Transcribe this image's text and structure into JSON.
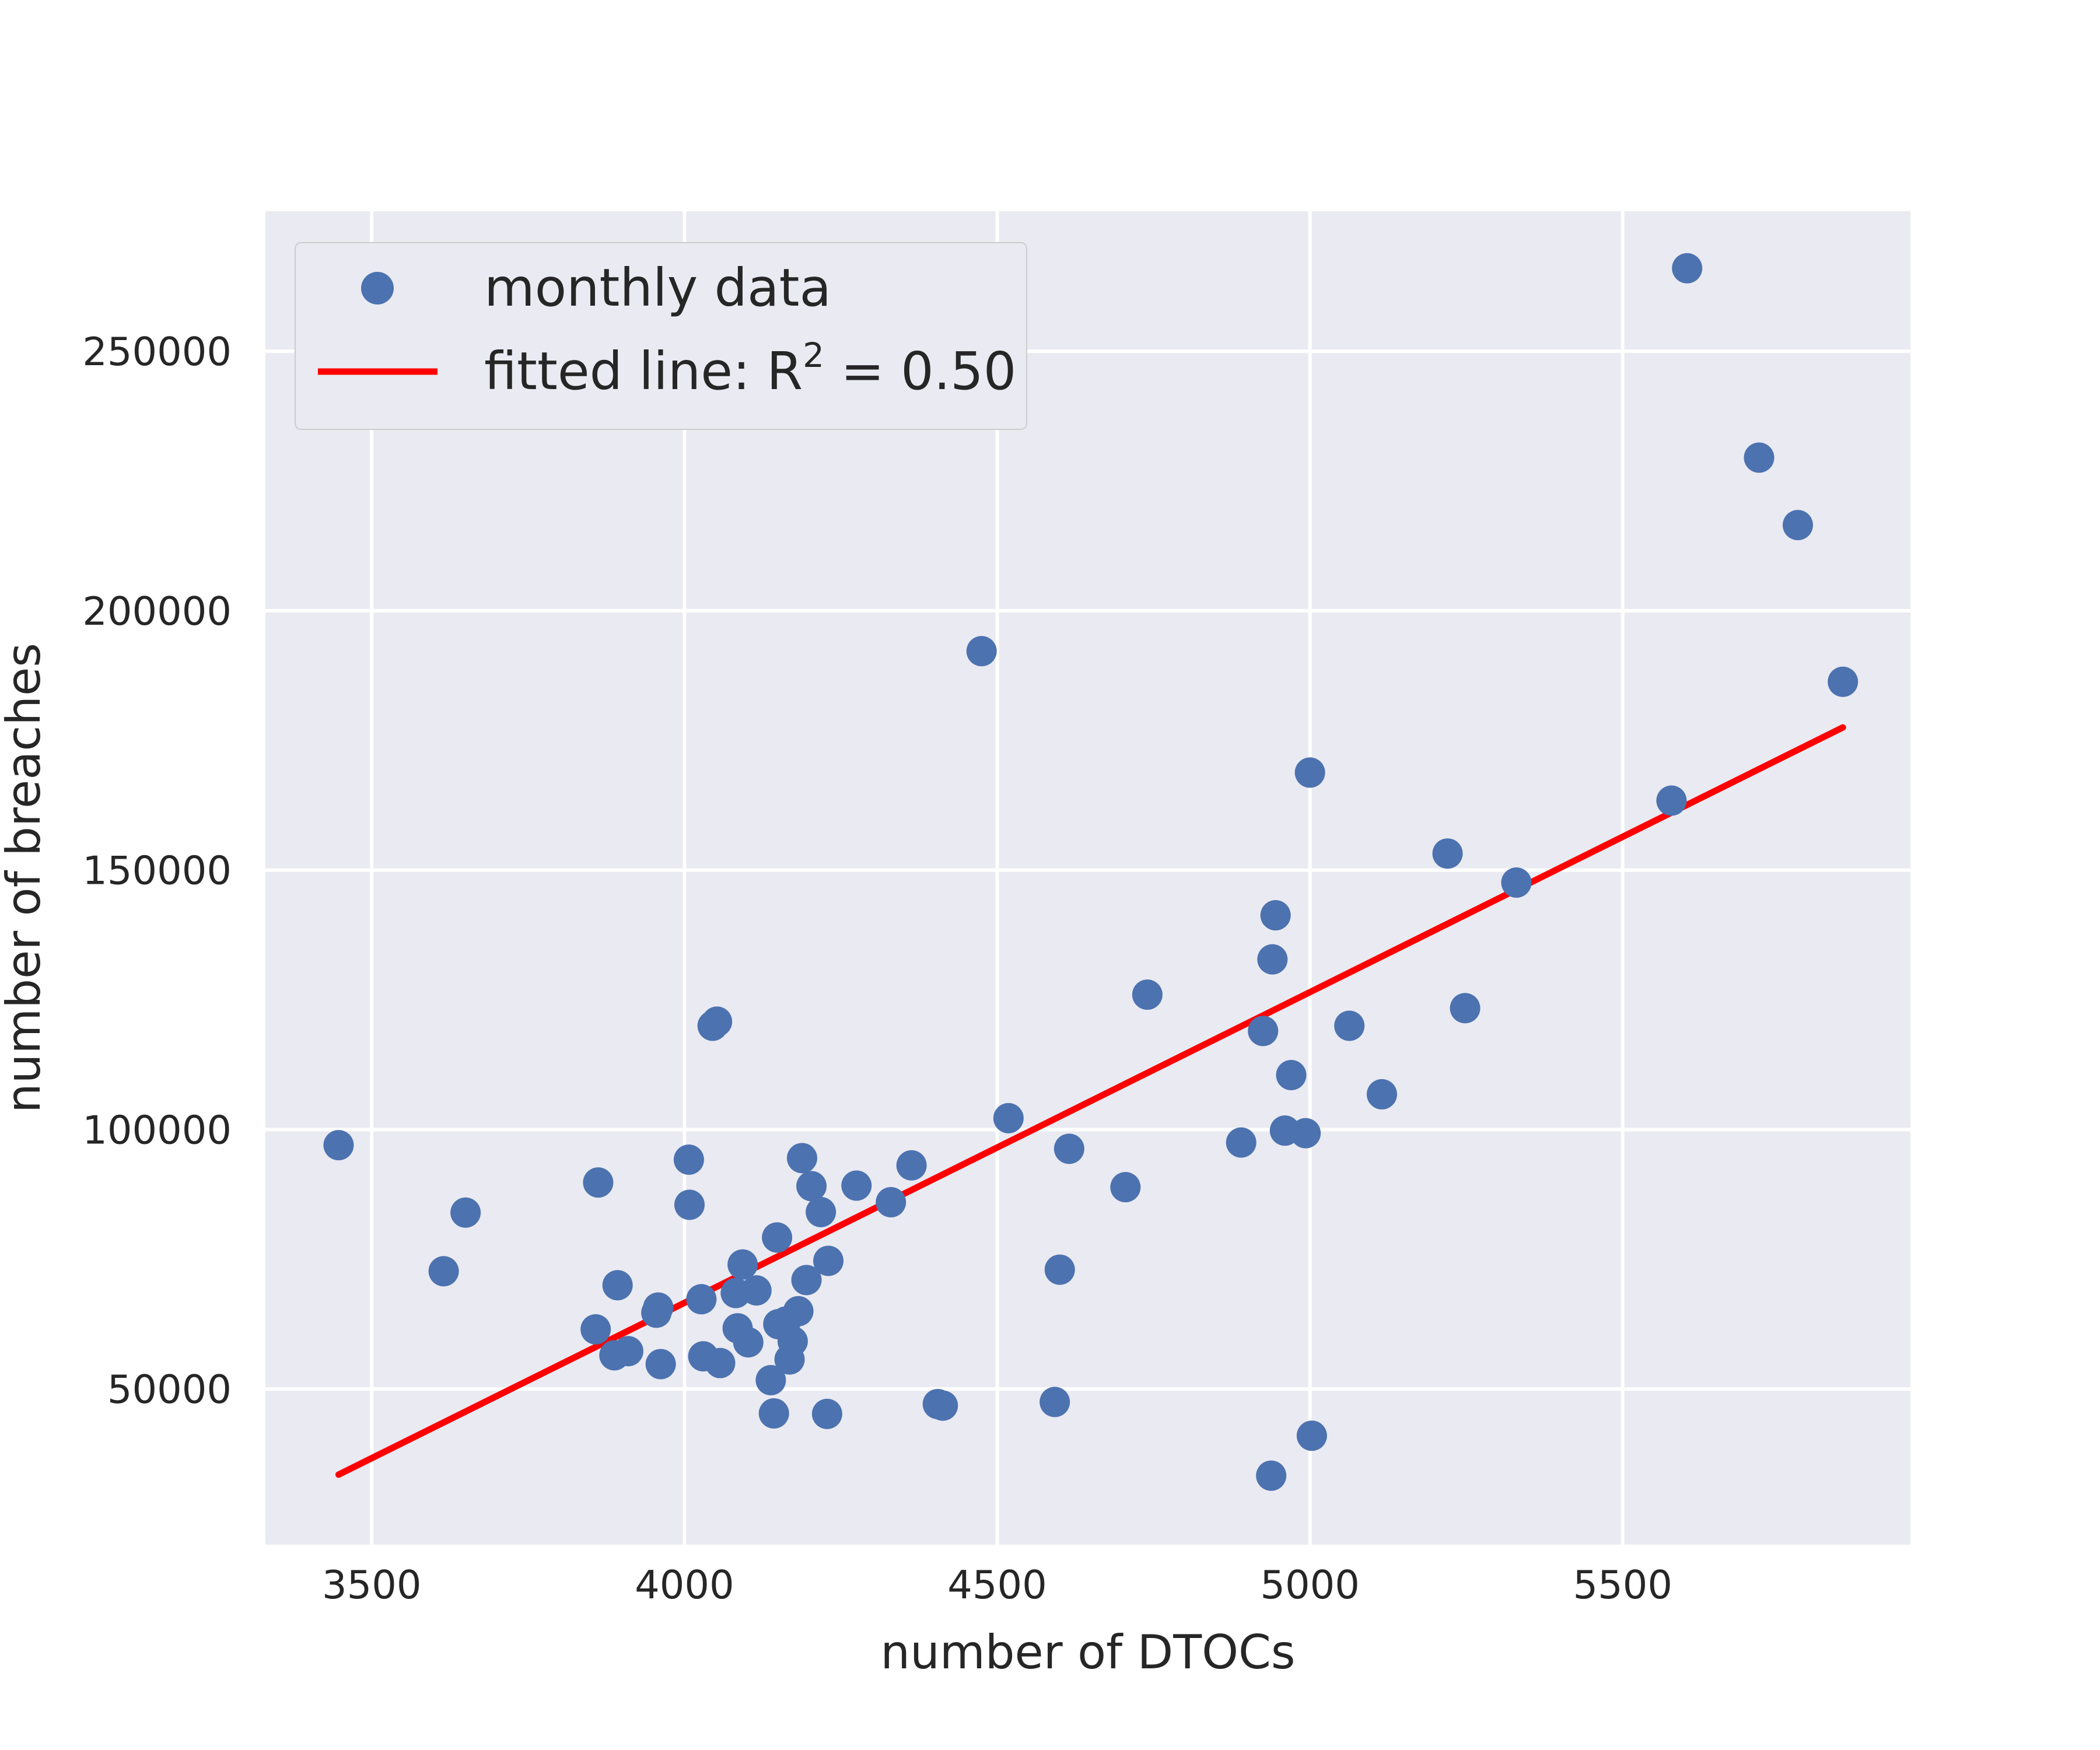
{
  "chart_data": {
    "type": "scatter",
    "title": "",
    "xlabel": "number of DTOCs",
    "ylabel": "number of breaches",
    "xlim": [
      3330,
      5960
    ],
    "ylim": [
      20000,
      277000
    ],
    "xticks": [
      3500,
      4000,
      4500,
      5000,
      5500
    ],
    "yticks": [
      50000,
      100000,
      150000,
      200000,
      250000
    ],
    "grid": true,
    "legend_position": "top-left",
    "colors": {
      "background": "#eaeaf2",
      "grid": "#ffffff",
      "points": "#4c72b0",
      "fit_line": "#ff0000"
    },
    "legend": [
      {
        "label": "monthly data",
        "marker": "point"
      },
      {
        "label_prefix": "fitted line: R",
        "label_superscript": "2",
        "label_suffix": " = 0.50",
        "marker": "line"
      }
    ],
    "series": [
      {
        "name": "monthly data",
        "points": [
          [
            3447,
            97000
          ],
          [
            3615,
            72700
          ],
          [
            3650,
            84000
          ],
          [
            3858,
            61500
          ],
          [
            3862,
            89800
          ],
          [
            3888,
            56500
          ],
          [
            3893,
            70000
          ],
          [
            3910,
            57300
          ],
          [
            3955,
            64700
          ],
          [
            3958,
            65700
          ],
          [
            3962,
            54800
          ],
          [
            4007,
            94200
          ],
          [
            4008,
            85500
          ],
          [
            4027,
            67300
          ],
          [
            4030,
            56300
          ],
          [
            4045,
            120000
          ],
          [
            4052,
            120800
          ],
          [
            4057,
            55000
          ],
          [
            4082,
            68500
          ],
          [
            4085,
            61700
          ],
          [
            4093,
            74000
          ],
          [
            4102,
            59000
          ],
          [
            4115,
            69000
          ],
          [
            4138,
            51700
          ],
          [
            4143,
            45300
          ],
          [
            4148,
            79200
          ],
          [
            4150,
            62500
          ],
          [
            4162,
            63000
          ],
          [
            4168,
            55700
          ],
          [
            4173,
            59200
          ],
          [
            4182,
            65000
          ],
          [
            4188,
            94500
          ],
          [
            4195,
            71000
          ],
          [
            4203,
            89100
          ],
          [
            4218,
            84100
          ],
          [
            4228,
            45200
          ],
          [
            4230,
            74700
          ],
          [
            4275,
            89200
          ],
          [
            4330,
            86000
          ],
          [
            4363,
            93100
          ],
          [
            4405,
            47100
          ],
          [
            4413,
            46800
          ],
          [
            4475,
            192200
          ],
          [
            4518,
            102200
          ],
          [
            4592,
            47500
          ],
          [
            4600,
            73000
          ],
          [
            4615,
            96300
          ],
          [
            4705,
            88900
          ],
          [
            4740,
            126000
          ],
          [
            4890,
            97500
          ],
          [
            4925,
            119000
          ],
          [
            4938,
            33300
          ],
          [
            4940,
            132800
          ],
          [
            4945,
            141300
          ],
          [
            4960,
            99800
          ],
          [
            4970,
            110500
          ],
          [
            4993,
            99300
          ],
          [
            5000,
            168800
          ],
          [
            5003,
            41000
          ],
          [
            5063,
            120000
          ],
          [
            5115,
            106800
          ],
          [
            5220,
            153200
          ],
          [
            5248,
            123400
          ],
          [
            5330,
            147600
          ],
          [
            5578,
            163400
          ],
          [
            5603,
            266000
          ],
          [
            5718,
            229500
          ],
          [
            5780,
            216500
          ],
          [
            5852,
            186300
          ]
        ]
      },
      {
        "name": "fitted line: R² = 0.50",
        "points": [
          [
            3447,
            33500
          ],
          [
            5852,
            177500
          ]
        ]
      }
    ]
  }
}
